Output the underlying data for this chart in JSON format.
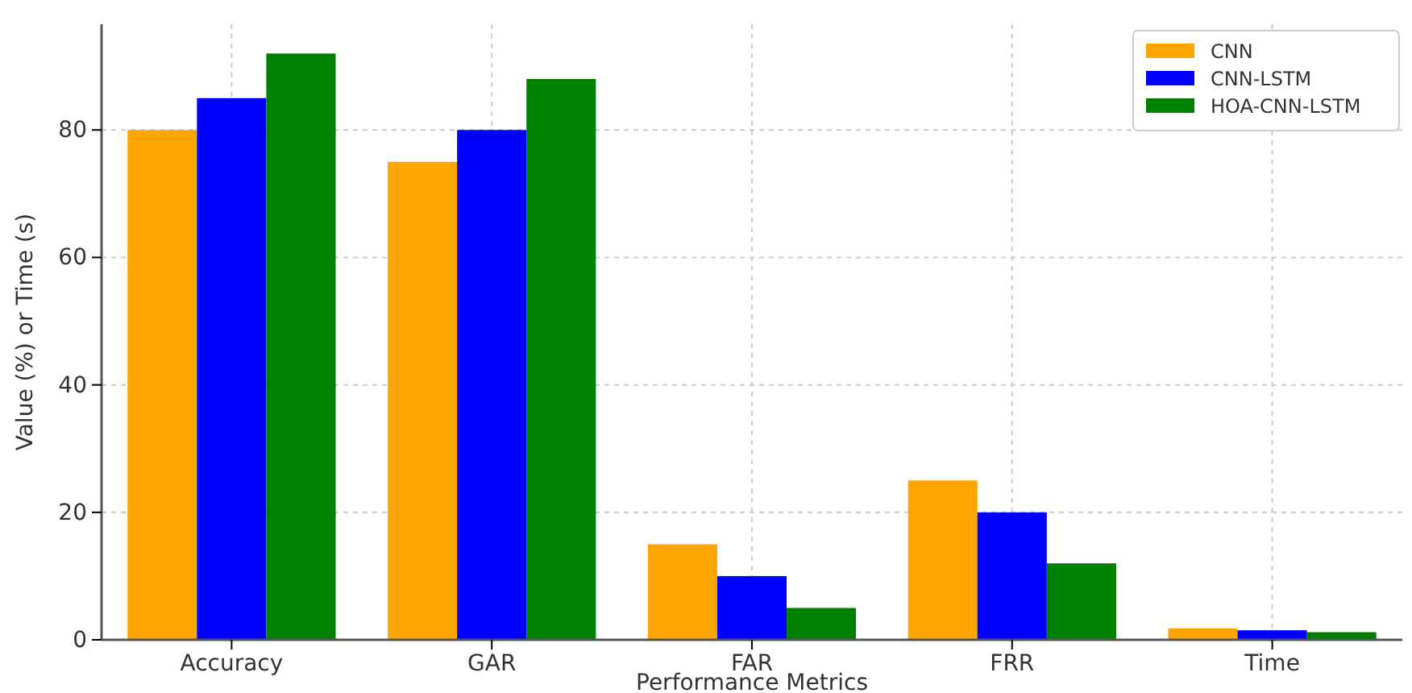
{
  "chart_data": {
    "type": "bar",
    "xlabel": "Performance Metrics",
    "ylabel": "Value (%) or Time (s)",
    "categories": [
      "Accuracy",
      "GAR",
      "FAR",
      "FRR",
      "Time"
    ],
    "series": [
      {
        "name": "CNN",
        "color": "#ffa500",
        "values": [
          80,
          75,
          15,
          25,
          1.8
        ]
      },
      {
        "name": "CNN-LSTM",
        "color": "#0000ff",
        "values": [
          85,
          80,
          10,
          20,
          1.5
        ]
      },
      {
        "name": "HOA-CNN-LSTM",
        "color": "#008000",
        "values": [
          92,
          88,
          5,
          12,
          1.2
        ]
      }
    ],
    "ylim": [
      0,
      96.6
    ],
    "yticks": [
      0,
      20,
      40,
      60,
      80
    ],
    "grid": true,
    "legend": "top right"
  }
}
